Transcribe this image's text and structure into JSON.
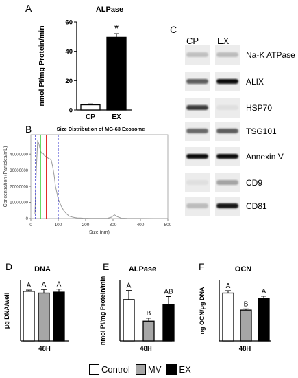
{
  "panels": {
    "A": "A",
    "B": "B",
    "C": "C",
    "D": "D",
    "E": "E",
    "F": "F"
  },
  "western_blot": {
    "lanes": [
      "CP",
      "EX"
    ],
    "markers": [
      "Na-K ATPase",
      "ALIX",
      "HSP70",
      "TSG101",
      "Annexin V",
      "CD9",
      "CD81"
    ]
  },
  "legend": [
    {
      "label": "Control",
      "color": "#ffffff"
    },
    {
      "label": "MV",
      "color": "#a6a6a6"
    },
    {
      "label": "EX",
      "color": "#000000"
    }
  ],
  "chart_data": [
    {
      "id": "A",
      "type": "bar",
      "title": "ALPase",
      "ylabel": "nmol PI/mg Protein/min",
      "categories": [
        "CP",
        "EX"
      ],
      "values": [
        3.5,
        49.5
      ],
      "errors": [
        0.6,
        2.5
      ],
      "colors": [
        "#ffffff",
        "#000000"
      ],
      "ylim": [
        0,
        60
      ],
      "yticks": [
        0,
        20,
        40,
        60
      ],
      "annotations": [
        "",
        "*"
      ]
    },
    {
      "id": "B",
      "type": "line",
      "title": "Size Distribution of MG-63 Exosome",
      "xlabel": "Size (nm)",
      "ylabel": "Concentration (Particles/mL)",
      "xlim": [
        0,
        500
      ],
      "ylim": [
        0,
        52000000
      ],
      "xticks": [
        0,
        100,
        200,
        300,
        400,
        500
      ],
      "yticks": [
        0,
        10000000,
        20000000,
        30000000,
        40000000
      ],
      "ytick_labels": [
        "0",
        "10000000",
        "20000000",
        "30000000",
        "40000000"
      ],
      "x": [
        15,
        20,
        25,
        30,
        35,
        40,
        45,
        50,
        55,
        60,
        65,
        70,
        75,
        80,
        85,
        90,
        100,
        110,
        120,
        130,
        140,
        150,
        160,
        170,
        180,
        190,
        200,
        220,
        240,
        260,
        280,
        295,
        305,
        315,
        330,
        350,
        400,
        450,
        500
      ],
      "y": [
        3000000,
        30000000,
        48500000,
        46000000,
        42000000,
        40500000,
        40500000,
        39000000,
        38500000,
        38000000,
        37000000,
        37000000,
        36000000,
        32000000,
        27000000,
        20000000,
        12000000,
        8000000,
        5000000,
        3000000,
        1500000,
        1000000,
        600000,
        400000,
        300000,
        200000,
        150000,
        100000,
        100000,
        100000,
        150000,
        900000,
        2300000,
        1200000,
        200000,
        100000,
        50000,
        20000,
        10000
      ],
      "lines": [
        {
          "x": 17,
          "color": "#3333cc",
          "style": "dashed"
        },
        {
          "x": 35,
          "color": "#33cc33",
          "style": "solid"
        },
        {
          "x": 57,
          "color": "#e02020",
          "style": "solid"
        },
        {
          "x": 100,
          "color": "#3333cc",
          "style": "dashed"
        }
      ]
    },
    {
      "id": "D",
      "type": "bar",
      "title": "DNA",
      "ylabel": "μg DNA/well",
      "xlabel": "48H",
      "categories": [
        "Control",
        "MV",
        "EX"
      ],
      "values": [
        4.1,
        3.95,
        4.03
      ],
      "errors": [
        0.1,
        0.3,
        0.25
      ],
      "colors": [
        "#ffffff",
        "#a6a6a6",
        "#000000"
      ],
      "ylim": [
        0,
        5
      ],
      "annotations": [
        "A",
        "A",
        "A"
      ]
    },
    {
      "id": "E",
      "type": "bar",
      "title": "ALPase",
      "ylabel": "nmol PI/mg Protein/min",
      "xlabel": "48H",
      "categories": [
        "Control",
        "MV",
        "EX"
      ],
      "values": [
        20.5,
        9.8,
        18
      ],
      "errors": [
        4.5,
        1.5,
        4
      ],
      "colors": [
        "#ffffff",
        "#a6a6a6",
        "#000000"
      ],
      "ylim": [
        0,
        30
      ],
      "annotations": [
        "A",
        "B",
        "AB"
      ]
    },
    {
      "id": "F",
      "type": "bar",
      "title": "OCN",
      "ylabel": "ng OCN/μg DNA",
      "xlabel": "48H",
      "categories": [
        "Control",
        "MV",
        "EX"
      ],
      "values": [
        3.95,
        2.55,
        3.5
      ],
      "errors": [
        0.2,
        0.1,
        0.2
      ],
      "colors": [
        "#ffffff",
        "#a6a6a6",
        "#000000"
      ],
      "ylim": [
        0,
        5
      ],
      "annotations": [
        "A",
        "B",
        "A"
      ]
    }
  ]
}
